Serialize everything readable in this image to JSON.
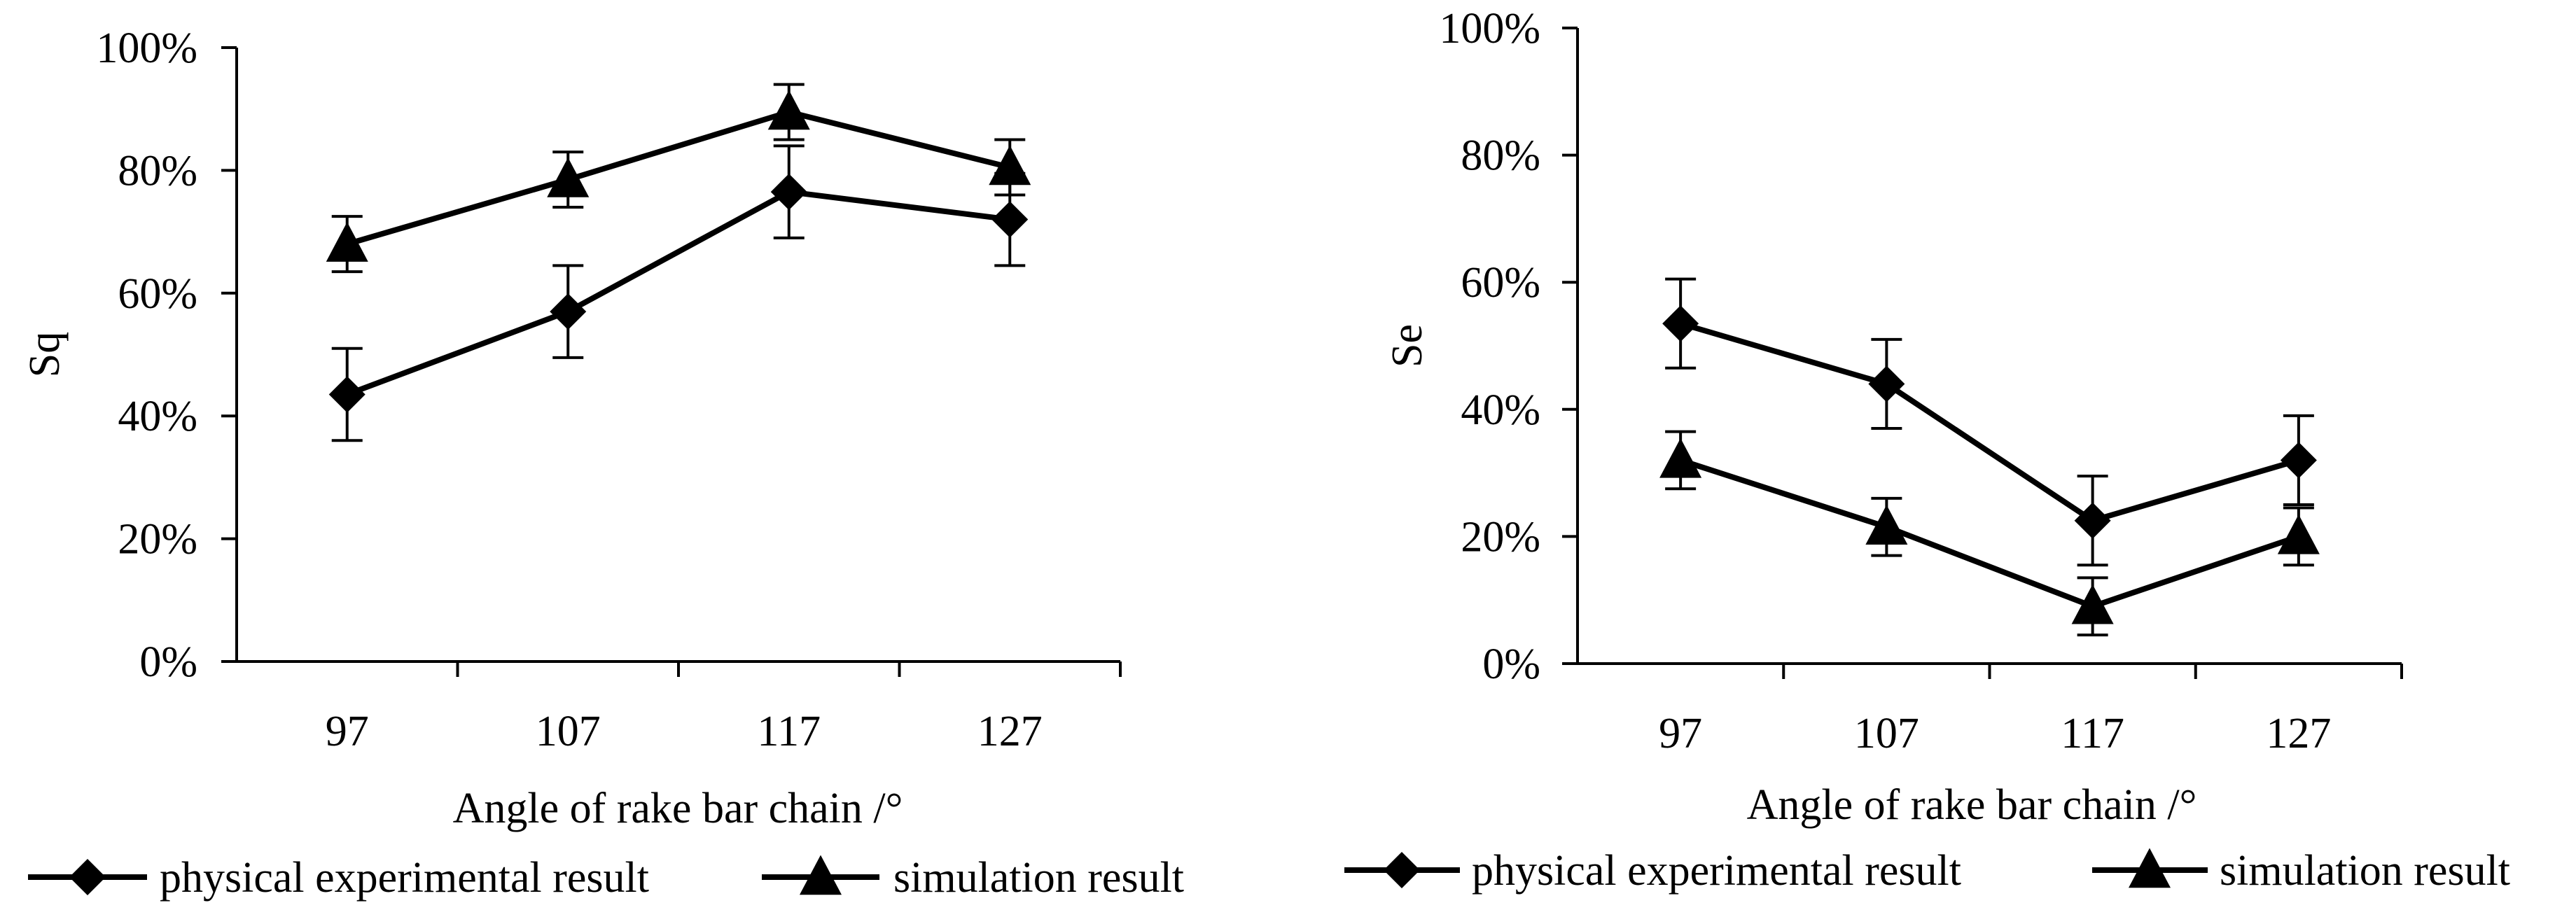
{
  "chart_data": [
    {
      "type": "line",
      "categories": [
        "97",
        "107",
        "117",
        "127"
      ],
      "xlabel": "Angle of rake bar chain /°",
      "ylabel": "Sq",
      "ylim": [
        0,
        100
      ],
      "ytick_labels": [
        "0%",
        "20%",
        "40%",
        "60%",
        "80%",
        "100%"
      ],
      "legend_position": "bottom",
      "series": [
        {
          "name": "physical experimental result",
          "marker": "diamond",
          "values": [
            43.5,
            57,
            76.5,
            72
          ],
          "errors": [
            7.5,
            7.5,
            7.5,
            7.5
          ]
        },
        {
          "name": "simulation result",
          "marker": "triangle",
          "values": [
            68,
            78.5,
            89.5,
            80.5
          ],
          "errors": [
            4.5,
            4.5,
            4.5,
            4.5
          ]
        }
      ]
    },
    {
      "type": "line",
      "categories": [
        "97",
        "107",
        "117",
        "127"
      ],
      "xlabel": "Angle of rake bar chain /°",
      "ylabel": "Se",
      "ylim": [
        0,
        100
      ],
      "ytick_labels": [
        "0%",
        "20%",
        "40%",
        "60%",
        "80%",
        "100%"
      ],
      "legend_position": "bottom",
      "series": [
        {
          "name": "physical experimental result",
          "marker": "diamond",
          "values": [
            53.5,
            44,
            22.5,
            32
          ],
          "errors": [
            7,
            7,
            7,
            7
          ]
        },
        {
          "name": "simulation result",
          "marker": "triangle",
          "values": [
            32,
            21.5,
            9,
            20
          ],
          "errors": [
            4.5,
            4.5,
            4.5,
            4.5
          ]
        }
      ]
    }
  ]
}
